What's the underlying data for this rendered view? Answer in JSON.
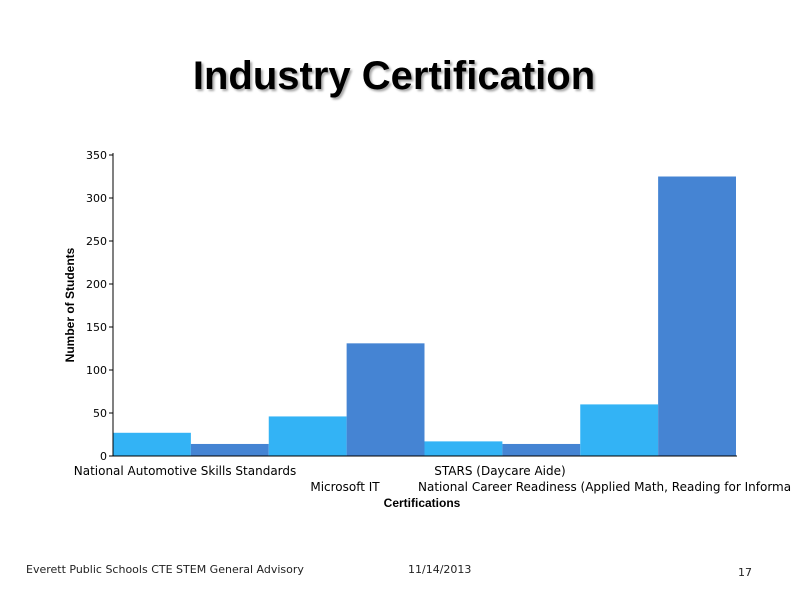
{
  "slide": {
    "title": "Industry Certification",
    "footer_left": "Everett Public Schools CTE STEM General Advisory",
    "footer_date": "11/14/2013",
    "page_number": "17"
  },
  "colors": {
    "light_bar": "#33b3f5",
    "dark_bar": "#4584d3"
  },
  "chart_data": {
    "type": "bar",
    "title": "",
    "xlabel": "Certifications",
    "ylabel": "Number of Students",
    "ylim": [
      0,
      350
    ],
    "yticks": [
      0,
      50,
      100,
      150,
      200,
      250,
      300,
      350
    ],
    "grid": false,
    "legend": "none",
    "categories": [
      "National Automotive Skills Standards",
      "Microsoft IT",
      "STARS (Daycare Aide)",
      "National Career Readiness (Applied Math, Reading for Informa"
    ],
    "category_labels_visible": [
      true,
      true,
      true,
      true
    ],
    "bars": [
      27,
      14,
      46,
      131,
      17,
      14,
      60,
      325
    ],
    "bar_colors": [
      "light",
      "dark",
      "light",
      "dark",
      "light",
      "dark",
      "light",
      "dark"
    ]
  }
}
